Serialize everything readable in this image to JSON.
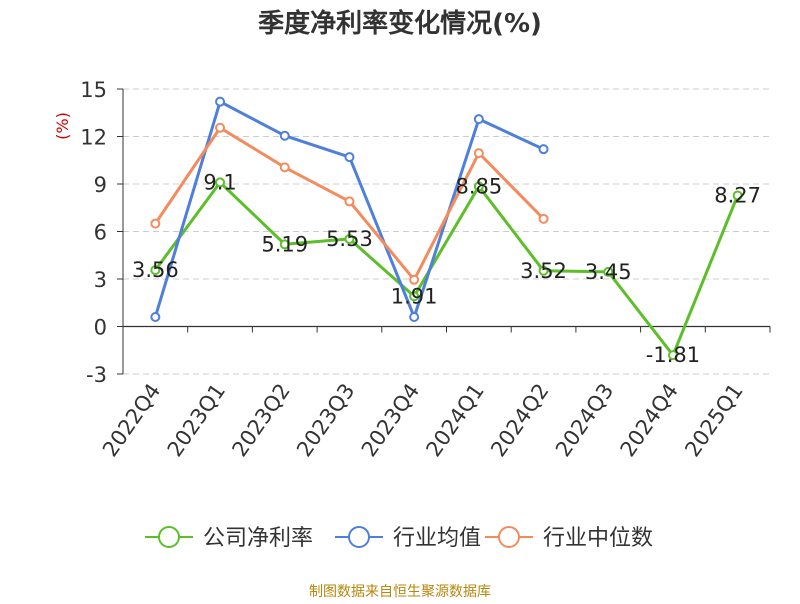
{
  "chart_data": {
    "type": "line",
    "title": "季度净利率变化情况(%)",
    "ylabel": "(%)",
    "xlabel": "",
    "ylim": [
      -3,
      15
    ],
    "yticks": [
      -3,
      0,
      3,
      6,
      9,
      12,
      15
    ],
    "grid": true,
    "legend_position": "bottom",
    "categories": [
      "2022Q4",
      "2023Q1",
      "2023Q2",
      "2023Q3",
      "2023Q4",
      "2024Q1",
      "2024Q2",
      "2024Q3",
      "2024Q4",
      "2025Q1"
    ],
    "series": [
      {
        "name": "公司净利率",
        "color": "#5cbf2a",
        "values": [
          3.56,
          9.1,
          5.19,
          5.53,
          1.91,
          8.85,
          3.52,
          3.45,
          -1.81,
          8.27
        ],
        "labels": [
          "3.56",
          "9.1",
          "5.19",
          "5.53",
          "1.91",
          "8.85",
          "3.52",
          "3.45",
          "-1.81",
          "8.27"
        ]
      },
      {
        "name": "行业均值",
        "color": "#4e7fdc",
        "values": [
          0.6,
          14.2,
          12.05,
          10.7,
          0.6,
          13.1,
          11.2,
          null,
          null,
          null
        ]
      },
      {
        "name": "行业中位数",
        "color": "#f48b5c",
        "values": [
          6.5,
          12.55,
          10.05,
          7.9,
          2.95,
          10.95,
          6.8,
          null,
          null,
          null
        ]
      }
    ]
  },
  "source": "制图数据来自恒生聚源数据库",
  "colors": {
    "title": "#333333",
    "axis": "#333333",
    "grid": "#cccccc",
    "ylabel": "#cc0000",
    "source": "#b8860b"
  }
}
